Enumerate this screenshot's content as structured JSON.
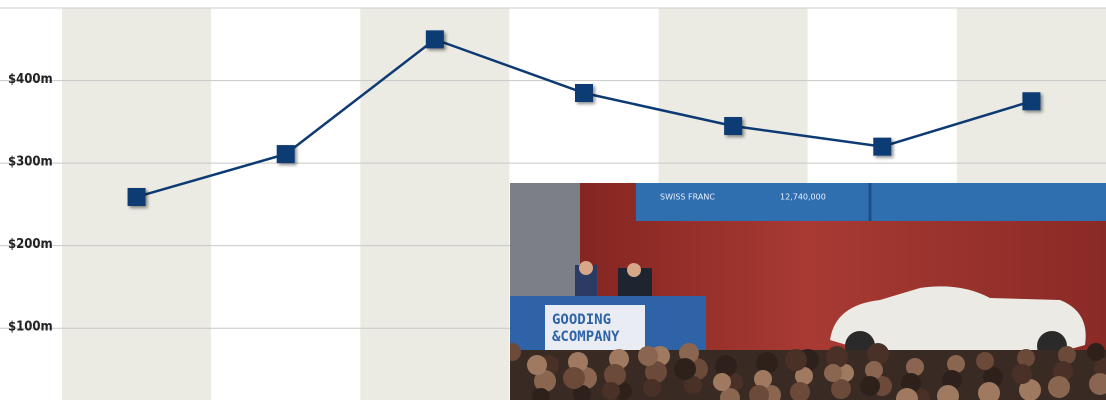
{
  "chart_data": {
    "type": "line",
    "categories": [
      null,
      null,
      null,
      null,
      null,
      null,
      null
    ],
    "series": [
      {
        "color": "#0d3a73",
        "values": [
          259,
          311,
          450,
          385,
          345,
          320,
          375
        ]
      }
    ],
    "ylim": [
      13,
      488
    ],
    "yticks": [
      {
        "value": 100,
        "label": "$100m"
      },
      {
        "value": 200,
        "label": "$200m"
      },
      {
        "value": 300,
        "label": "$300m"
      },
      {
        "value": 400,
        "label": "$400m"
      }
    ],
    "grid": true,
    "band_colors": [
      "#ecebe3",
      "#ffffff"
    ]
  },
  "photo": {
    "screen_texts": [
      "SWISS FRANC",
      "12,740,000"
    ],
    "sign_lines": [
      "GOODING",
      "&COMPANY"
    ]
  }
}
